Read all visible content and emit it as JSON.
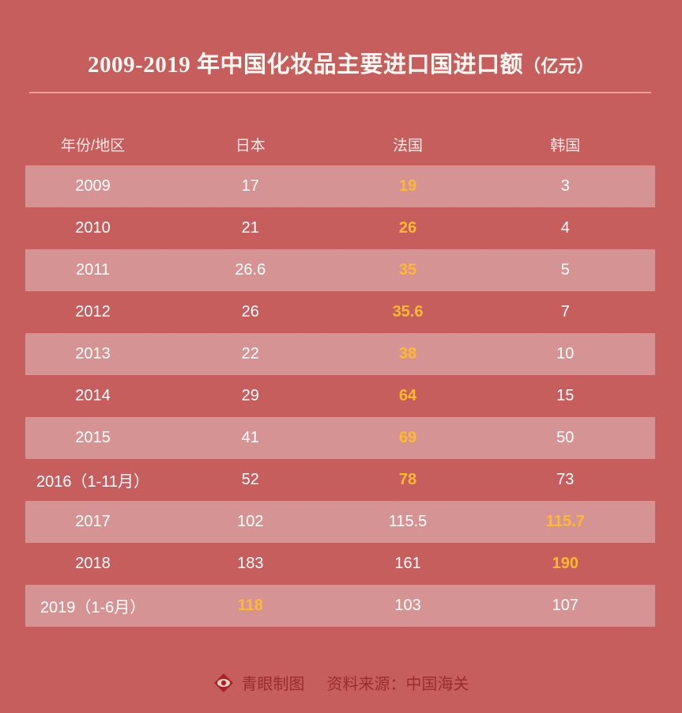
{
  "title": "2009-2019 年中国化妆品主要进口国进口额",
  "title_unit": "（亿元）",
  "colors": {
    "background": "#c65e5e",
    "stripe": "#d69393",
    "highlight": "#ffb92e",
    "footer_text": "#9b2c2c"
  },
  "chart_data": {
    "type": "table",
    "columns": [
      "年份/地区",
      "日本",
      "法国",
      "韩国"
    ],
    "rows": [
      {
        "year": "2009",
        "values": [
          "17",
          "19",
          "3"
        ],
        "highlight": 1
      },
      {
        "year": "2010",
        "values": [
          "21",
          "26",
          "4"
        ],
        "highlight": 1
      },
      {
        "year": "2011",
        "values": [
          "26.6",
          "35",
          "5"
        ],
        "highlight": 1
      },
      {
        "year": "2012",
        "values": [
          "26",
          "35.6",
          "7"
        ],
        "highlight": 1
      },
      {
        "year": "2013",
        "values": [
          "22",
          "38",
          "10"
        ],
        "highlight": 1
      },
      {
        "year": "2014",
        "values": [
          "29",
          "64",
          "15"
        ],
        "highlight": 1
      },
      {
        "year": "2015",
        "values": [
          "41",
          "69",
          "50"
        ],
        "highlight": 1
      },
      {
        "year": "2016（1-11月）",
        "values": [
          "52",
          "78",
          "73"
        ],
        "highlight": 1
      },
      {
        "year": "2017",
        "values": [
          "102",
          "115.5",
          "115.7"
        ],
        "highlight": 2
      },
      {
        "year": "2018",
        "values": [
          "183",
          "161",
          "190"
        ],
        "highlight": 2
      },
      {
        "year": "2019（1-6月）",
        "values": [
          "118",
          "103",
          "107"
        ],
        "highlight": 0
      }
    ]
  },
  "footer": {
    "icon": "eye-logo-icon",
    "brand": "青眼制图",
    "source": "资料来源：中国海关"
  }
}
